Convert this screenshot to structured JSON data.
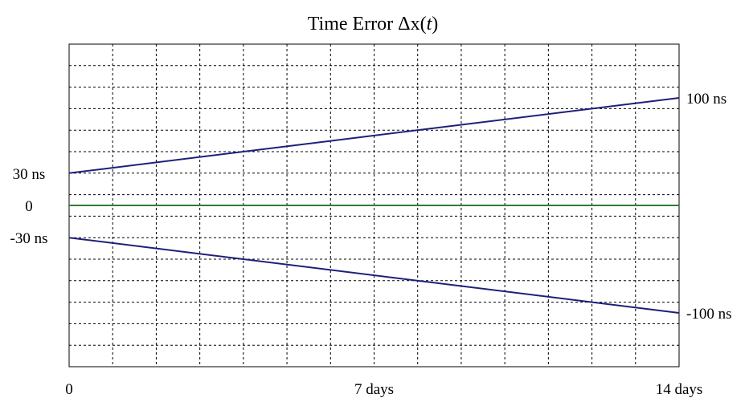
{
  "chart_data": {
    "type": "line",
    "title": "Time Error Δx(",
    "title_var": "t",
    "title_end": ")",
    "xlabel": "",
    "ylabel": "",
    "xlim": [
      0,
      14
    ],
    "ylim": [
      -150,
      150
    ],
    "x_step": 1,
    "y_step": 20,
    "grid": true,
    "x_tick_labels": [
      {
        "value": 0,
        "label": "0"
      },
      {
        "value": 7,
        "label": "7 days"
      },
      {
        "value": 14,
        "label": "14 days"
      }
    ],
    "y_tick_labels": [
      {
        "value": 30,
        "label": "30 ns"
      },
      {
        "value": 0,
        "label": "0"
      },
      {
        "value": -30,
        "label": "-30 ns"
      }
    ],
    "series": [
      {
        "x": [
          0,
          14
        ],
        "y": [
          30,
          100
        ],
        "color": "#1f1f7a",
        "end_label": "100 ns"
      },
      {
        "x": [
          0,
          14
        ],
        "y": [
          0,
          0
        ],
        "color": "#2e7d32",
        "end_label": ""
      },
      {
        "x": [
          0,
          14
        ],
        "y": [
          -30,
          -100
        ],
        "color": "#1f1f7a",
        "end_label": "-100 ns"
      }
    ]
  }
}
